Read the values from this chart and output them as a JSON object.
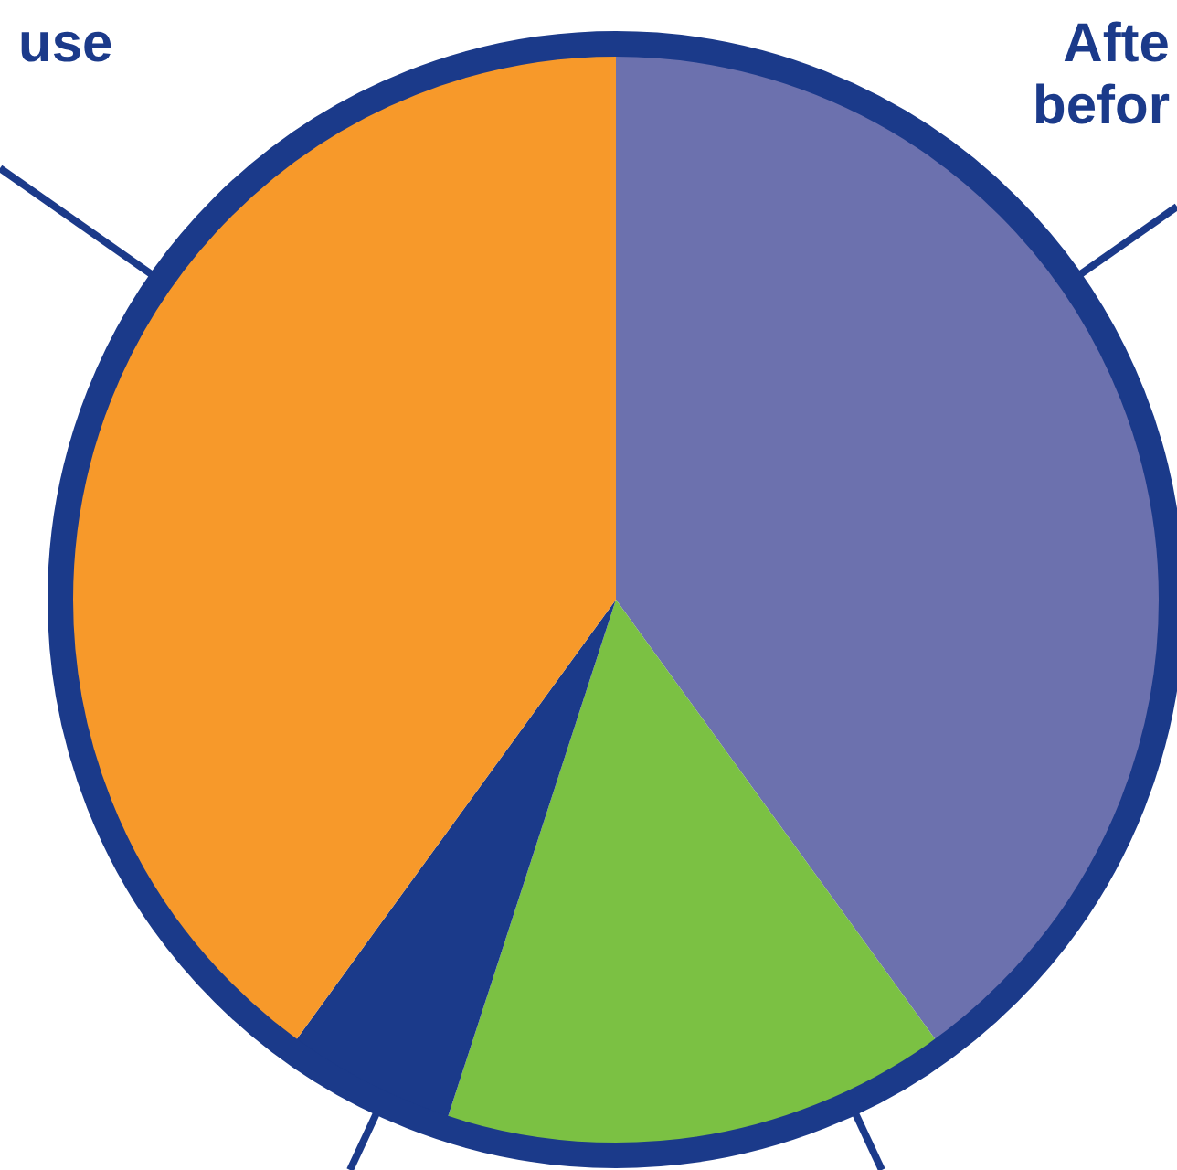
{
  "chart_data": {
    "type": "pie",
    "categories": [
      "Afte befor",
      null,
      null,
      "use"
    ],
    "values": [
      40,
      15,
      5,
      40
    ],
    "colors": [
      "#6c71ae",
      "#7bc143",
      "#1b3a8a",
      "#f7992a"
    ]
  }
}
